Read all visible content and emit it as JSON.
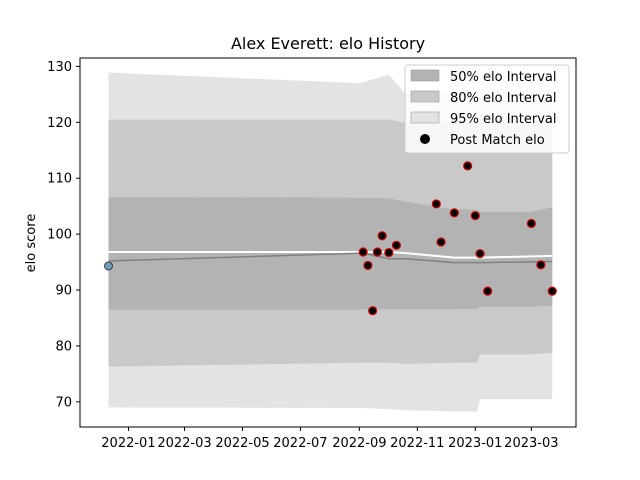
{
  "chart_data": {
    "type": "line",
    "title": "Alex Everett: elo History",
    "xlabel": "",
    "ylabel": "elo score",
    "xlim": [
      "2021-11-11",
      "2023-04-17"
    ],
    "ylim": [
      65.5,
      131.5
    ],
    "x_ticks": [
      "2022-01",
      "2022-03",
      "2022-05",
      "2022-07",
      "2022-09",
      "2022-11",
      "2023-01",
      "2023-03"
    ],
    "y_ticks": [
      70,
      80,
      90,
      100,
      110,
      120,
      130
    ],
    "grid": false,
    "legend_placement": "top-right",
    "legend": [
      {
        "label": "50% elo Interval",
        "kind": "band",
        "color": "#b3b3b3"
      },
      {
        "label": "80% elo Interval",
        "kind": "band",
        "color": "#c9c9c9"
      },
      {
        "label": "95% elo Interval",
        "kind": "band",
        "color": "#e3e3e3"
      },
      {
        "label": "Post Match elo",
        "kind": "marker",
        "color": "#000000"
      }
    ],
    "bands": {
      "dates": [
        "2021-12-11",
        "2022-09-01",
        "2022-10-02",
        "2022-10-20",
        "2022-12-10",
        "2023-01-03",
        "2023-01-06",
        "2023-03-01",
        "2023-03-23"
      ],
      "p95": {
        "upper": [
          128.9,
          127.0,
          128.5,
          125.0,
          125.0,
          125.0,
          125.0,
          125.0,
          125.0
        ],
        "lower": [
          69.0,
          68.9,
          68.7,
          68.5,
          68.3,
          68.3,
          70.5,
          70.5,
          70.5
        ]
      },
      "p80": {
        "upper": [
          120.5,
          120.5,
          120.5,
          119.9,
          119.9,
          119.9,
          119.9,
          119.9,
          119.9
        ],
        "lower": [
          76.3,
          77.0,
          77.0,
          76.8,
          77.0,
          77.0,
          78.5,
          78.5,
          78.8
        ]
      },
      "p50": {
        "upper": [
          106.6,
          106.5,
          106.4,
          105.8,
          104.4,
          104.4,
          104.0,
          104.0,
          104.8
        ],
        "lower": [
          86.5,
          86.5,
          86.6,
          86.5,
          86.6,
          86.6,
          87.0,
          87.0,
          87.2
        ]
      }
    },
    "series": [
      {
        "values": {
          "dates": [
            "2021-12-11",
            "2022-09-05",
            "2022-10-02",
            "2022-10-20",
            "2022-12-10",
            "2023-01-06",
            "2023-03-23"
          ],
          "y": [
            96.8,
            96.8,
            96.8,
            96.6,
            95.8,
            95.8,
            96.1
          ]
        },
        "color": "#ffffff"
      },
      {
        "values": {
          "dates": [
            "2021-12-11",
            "2022-09-05",
            "2022-10-02",
            "2022-10-20",
            "2022-12-10",
            "2023-01-06",
            "2023-03-23"
          ],
          "y": [
            95.2,
            96.6,
            95.6,
            95.6,
            94.9,
            94.9,
            95.1
          ]
        },
        "color": "#808080"
      }
    ],
    "initial_point": {
      "x": "2021-12-11",
      "y": 94.3,
      "color": "#6f9fbf"
    },
    "post_match_points": [
      {
        "x": "2022-09-05",
        "y": 96.8
      },
      {
        "x": "2022-09-10",
        "y": 94.4
      },
      {
        "x": "2022-09-15",
        "y": 86.3
      },
      {
        "x": "2022-09-20",
        "y": 96.8
      },
      {
        "x": "2022-09-25",
        "y": 99.7
      },
      {
        "x": "2022-10-02",
        "y": 96.7
      },
      {
        "x": "2022-10-10",
        "y": 98.0
      },
      {
        "x": "2022-11-21",
        "y": 105.4
      },
      {
        "x": "2022-11-26",
        "y": 98.6
      },
      {
        "x": "2022-12-10",
        "y": 103.8
      },
      {
        "x": "2022-12-24",
        "y": 112.2
      },
      {
        "x": "2023-01-01",
        "y": 103.3
      },
      {
        "x": "2023-01-06",
        "y": 96.5
      },
      {
        "x": "2023-01-14",
        "y": 89.8
      },
      {
        "x": "2023-03-01",
        "y": 101.9
      },
      {
        "x": "2023-03-11",
        "y": 94.5
      },
      {
        "x": "2023-03-23",
        "y": 89.8
      }
    ]
  }
}
